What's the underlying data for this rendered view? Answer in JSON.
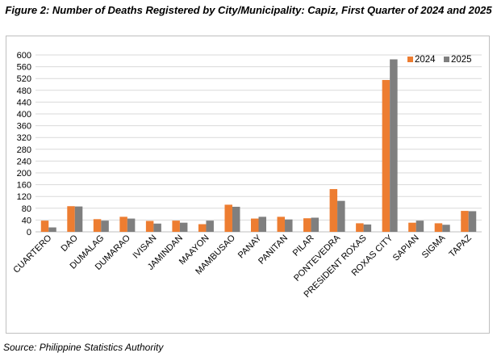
{
  "title": "Figure 2: Number of Deaths Registered by City/Municipality: Capiz, First Quarter of 2024 and 2025",
  "source": "Source: Philippine Statistics Authority",
  "colors": {
    "series_2024": "#ed7d31",
    "series_2025": "#7f7f7f",
    "grid": "#d9d9d9"
  },
  "chart_data": {
    "type": "bar",
    "title": "Figure 2: Number of Deaths Registered by City/Municipality: Capiz, First Quarter of 2024 and 2025",
    "xlabel": "",
    "ylabel": "",
    "ylim": [
      0,
      600
    ],
    "yticks": [
      0,
      40,
      80,
      120,
      160,
      200,
      240,
      280,
      320,
      360,
      400,
      440,
      480,
      520,
      560,
      600
    ],
    "grid": true,
    "legend_position": "top-right",
    "categories": [
      "CUARTERO",
      "DAO",
      "DUMALAG",
      "DUMARAO",
      "IVISAN",
      "JAMINDAN",
      "MAAYON",
      "MAMBUSAO",
      "PANAY",
      "PANITAN",
      "PILAR",
      "PONTEVEDRA",
      "PRESIDENT ROXAS",
      "ROXAS CITY",
      "SAPIAN",
      "SIGMA",
      "TAPAZ"
    ],
    "series": [
      {
        "name": "2024",
        "color": "#ed7d31",
        "values": [
          38,
          87,
          43,
          51,
          37,
          38,
          26,
          92,
          45,
          51,
          46,
          145,
          29,
          515,
          31,
          29,
          71
        ]
      },
      {
        "name": "2025",
        "color": "#7f7f7f",
        "values": [
          15,
          86,
          38,
          45,
          28,
          31,
          38,
          85,
          51,
          42,
          48,
          105,
          25,
          585,
          38,
          24,
          70
        ]
      }
    ]
  }
}
